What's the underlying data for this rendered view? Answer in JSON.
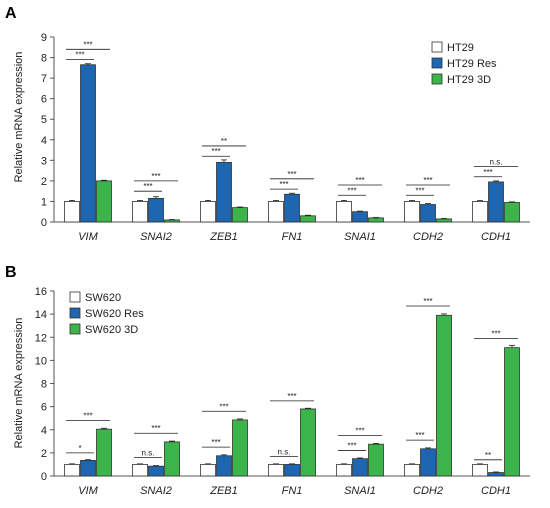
{
  "colors": {
    "white_series": "#ffffff",
    "blue_series": "#1f66b0",
    "green_series": "#3bb44a",
    "bar_stroke": "#333333"
  },
  "chart_data": [
    {
      "panel": "A",
      "type": "bar",
      "ylabel": "Relative mRNA expression",
      "ylim": [
        0,
        9
      ],
      "yticks": [
        0,
        1,
        2,
        3,
        4,
        5,
        6,
        7,
        8,
        9
      ],
      "categories": [
        "VIM",
        "SNAI2",
        "ZEB1",
        "FN1",
        "SNAI1",
        "CDH2",
        "CDH1"
      ],
      "legend_position": "top-right",
      "series": [
        {
          "name": "HT29",
          "color": "#ffffff",
          "values": [
            1.0,
            1.0,
            1.0,
            1.0,
            1.0,
            1.0,
            1.0
          ],
          "errors": [
            0.05,
            0.05,
            0.05,
            0.05,
            0.05,
            0.05,
            0.04
          ]
        },
        {
          "name": "HT29 Res",
          "color": "#1f66b0",
          "values": [
            7.65,
            1.15,
            2.9,
            1.35,
            0.5,
            0.85,
            1.95
          ],
          "errors": [
            0.05,
            0.08,
            0.12,
            0.05,
            0.03,
            0.05,
            0.05
          ]
        },
        {
          "name": "HT29 3D",
          "color": "#3bb44a",
          "values": [
            2.0,
            0.1,
            0.7,
            0.3,
            0.2,
            0.15,
            0.95
          ],
          "errors": [
            0.03,
            0.02,
            0.03,
            0.03,
            0.02,
            0.02,
            0.03
          ]
        }
      ],
      "significance": [
        {
          "cat": 0,
          "from": 0,
          "to": 1,
          "label": "***",
          "y": 7.9
        },
        {
          "cat": 0,
          "from": 0,
          "to": 2,
          "label": "***",
          "y": 8.4
        },
        {
          "cat": 1,
          "from": 0,
          "to": 1,
          "label": "***",
          "y": 1.5
        },
        {
          "cat": 1,
          "from": 0,
          "to": 2,
          "label": "***",
          "y": 2.0
        },
        {
          "cat": 2,
          "from": 0,
          "to": 1,
          "label": "***",
          "y": 3.2
        },
        {
          "cat": 2,
          "from": 0,
          "to": 2,
          "label": "**",
          "y": 3.7
        },
        {
          "cat": 3,
          "from": 0,
          "to": 1,
          "label": "***",
          "y": 1.6
        },
        {
          "cat": 3,
          "from": 0,
          "to": 2,
          "label": "***",
          "y": 2.1
        },
        {
          "cat": 4,
          "from": 0,
          "to": 1,
          "label": "***",
          "y": 1.3
        },
        {
          "cat": 4,
          "from": 0,
          "to": 2,
          "label": "***",
          "y": 1.8
        },
        {
          "cat": 5,
          "from": 0,
          "to": 1,
          "label": "***",
          "y": 1.3
        },
        {
          "cat": 5,
          "from": 0,
          "to": 2,
          "label": "***",
          "y": 1.8
        },
        {
          "cat": 6,
          "from": 0,
          "to": 1,
          "label": "***",
          "y": 2.2
        },
        {
          "cat": 6,
          "from": 0,
          "to": 2,
          "label": "n.s.",
          "y": 2.7
        }
      ]
    },
    {
      "panel": "B",
      "type": "bar",
      "ylabel": "Relative mRNA expression",
      "ylim": [
        0,
        16
      ],
      "yticks": [
        0,
        2,
        4,
        6,
        8,
        10,
        12,
        14,
        16
      ],
      "categories": [
        "VIM",
        "SNAI2",
        "ZEB1",
        "FN1",
        "SNAI1",
        "CDH2",
        "CDH1"
      ],
      "legend_position": "top-left",
      "series": [
        {
          "name": "SW620",
          "color": "#ffffff",
          "values": [
            1.0,
            1.0,
            1.0,
            1.0,
            1.0,
            1.0,
            1.0
          ],
          "errors": [
            0.05,
            0.05,
            0.05,
            0.05,
            0.05,
            0.05,
            0.05
          ]
        },
        {
          "name": "SW620 Res",
          "color": "#1f66b0",
          "values": [
            1.35,
            0.85,
            1.75,
            1.0,
            1.5,
            2.35,
            0.3
          ],
          "errors": [
            0.06,
            0.05,
            0.08,
            0.05,
            0.06,
            0.08,
            0.05
          ]
        },
        {
          "name": "SW620 3D",
          "color": "#3bb44a",
          "values": [
            4.05,
            2.95,
            4.85,
            5.8,
            2.75,
            13.9,
            11.1
          ],
          "errors": [
            0.08,
            0.07,
            0.08,
            0.06,
            0.07,
            0.12,
            0.2
          ]
        }
      ],
      "significance": [
        {
          "cat": 0,
          "from": 0,
          "to": 1,
          "label": "*",
          "y": 2.0
        },
        {
          "cat": 0,
          "from": 0,
          "to": 2,
          "label": "***",
          "y": 4.8
        },
        {
          "cat": 1,
          "from": 0,
          "to": 1,
          "label": "n.s.",
          "y": 1.6
        },
        {
          "cat": 1,
          "from": 0,
          "to": 2,
          "label": "***",
          "y": 3.7
        },
        {
          "cat": 2,
          "from": 0,
          "to": 1,
          "label": "***",
          "y": 2.5
        },
        {
          "cat": 2,
          "from": 0,
          "to": 2,
          "label": "***",
          "y": 5.6
        },
        {
          "cat": 3,
          "from": 0,
          "to": 1,
          "label": "n.s.",
          "y": 1.7
        },
        {
          "cat": 3,
          "from": 0,
          "to": 2,
          "label": "***",
          "y": 6.5
        },
        {
          "cat": 4,
          "from": 0,
          "to": 1,
          "label": "***",
          "y": 2.2
        },
        {
          "cat": 4,
          "from": 0,
          "to": 2,
          "label": "***",
          "y": 3.5
        },
        {
          "cat": 5,
          "from": 0,
          "to": 1,
          "label": "***",
          "y": 3.1
        },
        {
          "cat": 5,
          "from": 0,
          "to": 2,
          "label": "***",
          "y": 14.7
        },
        {
          "cat": 6,
          "from": 0,
          "to": 1,
          "label": "**",
          "y": 1.4
        },
        {
          "cat": 6,
          "from": 0,
          "to": 2,
          "label": "***",
          "y": 11.9
        }
      ]
    }
  ]
}
